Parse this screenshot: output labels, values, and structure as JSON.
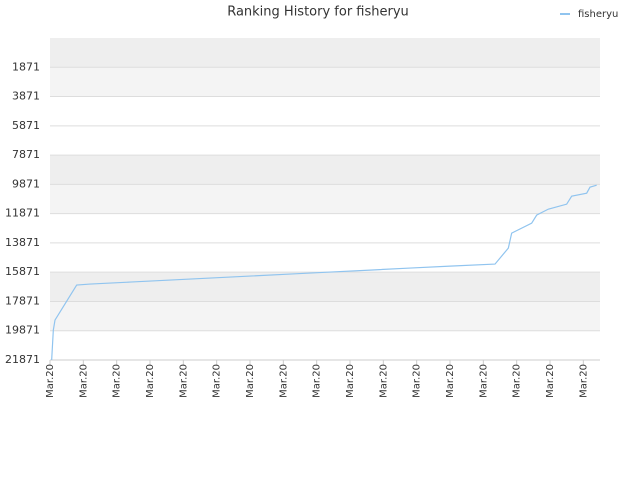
{
  "chart_data": {
    "type": "line",
    "title": "Ranking History for fisheryu",
    "series": [
      {
        "name": "fisheryu",
        "color": "#90c4ef",
        "x": [
          0.1,
          0.2,
          0.3,
          1.6,
          2.4,
          4.8,
          7.2,
          9.6,
          12.0,
          14.4,
          16.8,
          19.2,
          21.6,
          24.0,
          26.7,
          27.5,
          27.7,
          28.9,
          29.2,
          29.9,
          31.0,
          31.3,
          32.2,
          32.4,
          32.8
        ],
        "values": [
          21871,
          19823,
          19141,
          16752,
          16684,
          16547,
          16410,
          16274,
          16137,
          16001,
          15864,
          15728,
          15591,
          15455,
          15318,
          14226,
          13202,
          12520,
          11974,
          11564,
          11223,
          10677,
          10472,
          10062,
          9926
        ]
      }
    ],
    "xlim": [
      0,
      33
    ],
    "xticks": [
      {
        "value": 0,
        "label": "Mar.20"
      },
      {
        "value": 2,
        "label": "Mar.20"
      },
      {
        "value": 4,
        "label": "Mar.20"
      },
      {
        "value": 6,
        "label": "Mar.20"
      },
      {
        "value": 8,
        "label": "Mar.20"
      },
      {
        "value": 10,
        "label": "Mar.20"
      },
      {
        "value": 12,
        "label": "Mar.20"
      },
      {
        "value": 14,
        "label": "Mar.20"
      },
      {
        "value": 16,
        "label": "Mar.20"
      },
      {
        "value": 18,
        "label": "Mar.20"
      },
      {
        "value": 20,
        "label": "Mar.20"
      },
      {
        "value": 22,
        "label": "Mar.20"
      },
      {
        "value": 24,
        "label": "Mar.20"
      },
      {
        "value": 26,
        "label": "Mar.20"
      },
      {
        "value": 28,
        "label": "Mar.20"
      },
      {
        "value": 30,
        "label": "Mar.20"
      },
      {
        "value": 32,
        "label": "Mar.20"
      }
    ],
    "ylim": [
      21871,
      -129
    ],
    "yticks": [
      1871,
      3871,
      5871,
      7871,
      9871,
      11871,
      13871,
      15871,
      17871,
      19871,
      21871
    ],
    "grid": true,
    "legend": "top-right"
  }
}
